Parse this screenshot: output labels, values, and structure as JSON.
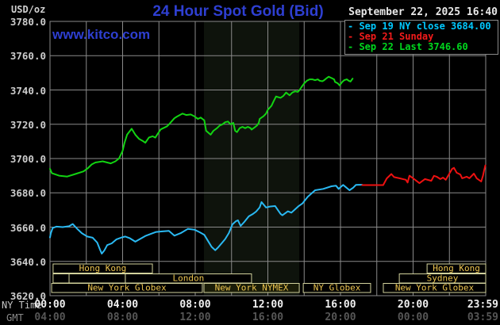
{
  "header": {
    "unit_label": "USD/oz",
    "title": "24 Hour Spot Gold (Bid)",
    "datetime": "September 22, 2025 16:40",
    "watermark": "www.kitco.com"
  },
  "legend": {
    "items": [
      {
        "label": "- Sep 19 NY close 3684.00",
        "color": "#00c8ff"
      },
      {
        "label": "- Sep 21 Sunday",
        "color": "#f21b1b"
      },
      {
        "label": "- Sep 22 Last 3746.60",
        "color": "#00d81e"
      }
    ]
  },
  "axes": {
    "ny_time_label": "NY Time",
    "gmt_label": "GMT",
    "y_ticks": [
      {
        "price": 3780,
        "label": "3780.0"
      },
      {
        "price": 3760,
        "label": "3760.0"
      },
      {
        "price": 3740,
        "label": "3740.0"
      },
      {
        "price": 3720,
        "label": "3720.0"
      },
      {
        "price": 3700,
        "label": "3700.0"
      },
      {
        "price": 3680,
        "label": "3680.0"
      },
      {
        "price": 3660,
        "label": "3660.0"
      },
      {
        "price": 3640,
        "label": "3640.0"
      },
      {
        "price": 3620,
        "label": "3620.0"
      }
    ],
    "x_ticks": [
      {
        "t": 0,
        "ny": "00:00",
        "gmt": "04:00"
      },
      {
        "t": 4,
        "ny": "04:00",
        "gmt": "08:00"
      },
      {
        "t": 8,
        "ny": "08:00",
        "gmt": "12:00"
      },
      {
        "t": 12,
        "ny": "12:00",
        "gmt": "16:00"
      },
      {
        "t": 16,
        "ny": "16:00",
        "gmt": "20:00"
      },
      {
        "t": 20,
        "ny": "20:00",
        "gmt": "00:00"
      },
      {
        "t": 23.98,
        "ny": "23:59",
        "gmt": "03:59"
      }
    ],
    "grid_color": "#8a8a8a",
    "session_border_color": "#d2d29c",
    "session_text_color": "#ecc44f"
  },
  "sessions": [
    {
      "row": 0,
      "t0": 0.17,
      "t1": 5.64,
      "label": "Hong Kong"
    },
    {
      "row": 0,
      "t0": 20.77,
      "t1": 24,
      "label": "Hong Kong"
    },
    {
      "row": 1,
      "t0": 0.17,
      "t1": 1.05,
      "label": ""
    },
    {
      "row": 1,
      "t0": 1.05,
      "t1": 4.15,
      "label": ""
    },
    {
      "row": 1,
      "t0": 4.15,
      "t1": 11.1,
      "label": "London"
    },
    {
      "row": 1,
      "t0": 19.24,
      "t1": 24,
      "label": "Sydney"
    },
    {
      "row": 2,
      "t0": 0.09,
      "t1": 8.39,
      "label": "New York Globex"
    },
    {
      "row": 2,
      "t0": 8.48,
      "t1": 13.73,
      "label": "New York NYMEX",
      "highlight": true
    },
    {
      "row": 2,
      "t0": 13.95,
      "t1": 17.66,
      "label": "NY Globex"
    },
    {
      "row": 2,
      "t0": 18.36,
      "t1": 24,
      "label": "New York Globex"
    }
  ],
  "chart_data": {
    "type": "line",
    "title": "24 Hour Spot Gold (Bid)",
    "xlabel": "NY Time (hours 00:00-23:59)",
    "ylabel": "USD/oz",
    "ylim": [
      3620,
      3780
    ],
    "xlim_hours": [
      0,
      24
    ],
    "grid": true,
    "highlight_band": {
      "t0": 8.48,
      "t1": 13.73,
      "color": "#0e130c"
    },
    "series": [
      {
        "name": "Sep 19 NY close 3684.00",
        "color": "#2ab9f2",
        "points": [
          [
            0,
            3654
          ],
          [
            0.05,
            3656.5
          ],
          [
            0.15,
            3659.5
          ],
          [
            0.35,
            3660.3
          ],
          [
            0.7,
            3660
          ],
          [
            1.05,
            3660.5
          ],
          [
            1.25,
            3661.8
          ],
          [
            1.5,
            3659
          ],
          [
            1.75,
            3656.5
          ],
          [
            2.05,
            3654.5
          ],
          [
            2.35,
            3653.8
          ],
          [
            2.6,
            3651
          ],
          [
            2.75,
            3647
          ],
          [
            2.85,
            3644.5
          ],
          [
            3,
            3646.5
          ],
          [
            3.15,
            3649.5
          ],
          [
            3.4,
            3650.5
          ],
          [
            3.65,
            3652.8
          ],
          [
            3.95,
            3654
          ],
          [
            4.15,
            3654.5
          ],
          [
            4.4,
            3653.5
          ],
          [
            4.7,
            3651.5
          ],
          [
            4.95,
            3653
          ],
          [
            5.25,
            3654.8
          ],
          [
            5.55,
            3656
          ],
          [
            5.85,
            3657.2
          ],
          [
            6.2,
            3657.5
          ],
          [
            6.55,
            3657.8
          ],
          [
            6.85,
            3655
          ],
          [
            7.2,
            3656.5
          ],
          [
            7.6,
            3659
          ],
          [
            7.95,
            3658.5
          ],
          [
            8.25,
            3657
          ],
          [
            8.5,
            3655.5
          ],
          [
            8.7,
            3652
          ],
          [
            8.9,
            3648.5
          ],
          [
            9.1,
            3646.5
          ],
          [
            9.25,
            3648
          ],
          [
            9.45,
            3650.5
          ],
          [
            9.65,
            3653
          ],
          [
            9.85,
            3656.5
          ],
          [
            10.05,
            3661.6
          ],
          [
            10.25,
            3663.5
          ],
          [
            10.35,
            3664
          ],
          [
            10.5,
            3660.7
          ],
          [
            10.7,
            3663
          ],
          [
            10.95,
            3666.3
          ],
          [
            11.15,
            3667.5
          ],
          [
            11.35,
            3669
          ],
          [
            11.55,
            3671.5
          ],
          [
            11.65,
            3674.6
          ],
          [
            11.9,
            3671.4
          ],
          [
            12.1,
            3672
          ],
          [
            12.4,
            3672.3
          ],
          [
            12.55,
            3670
          ],
          [
            12.7,
            3667.7
          ],
          [
            12.8,
            3666.9
          ],
          [
            13.1,
            3669.2
          ],
          [
            13.3,
            3668.4
          ],
          [
            13.7,
            3672.3
          ],
          [
            13.9,
            3673.8
          ],
          [
            14.2,
            3677.7
          ],
          [
            14.6,
            3681.5
          ],
          [
            15.05,
            3682.3
          ],
          [
            15.5,
            3683.8
          ],
          [
            15.75,
            3684.2
          ],
          [
            15.9,
            3682.3
          ],
          [
            16.15,
            3684.6
          ],
          [
            16.5,
            3681.5
          ],
          [
            16.7,
            3683
          ],
          [
            16.85,
            3684.6
          ],
          [
            17,
            3684.7
          ],
          [
            17.2,
            3684.7
          ]
        ]
      },
      {
        "name": "Sep 21 Sunday",
        "color": "#ee1111",
        "points": [
          [
            17.2,
            3684.5
          ],
          [
            18.35,
            3684.5
          ],
          [
            18.55,
            3688.4
          ],
          [
            18.65,
            3689.4
          ],
          [
            18.8,
            3691
          ],
          [
            18.95,
            3689.2
          ],
          [
            19.25,
            3688.5
          ],
          [
            19.6,
            3687.6
          ],
          [
            19.7,
            3686
          ],
          [
            19.8,
            3690
          ],
          [
            20,
            3688.5
          ],
          [
            20.35,
            3685.6
          ],
          [
            20.65,
            3688
          ],
          [
            21,
            3687
          ],
          [
            21.15,
            3689.9
          ],
          [
            21.3,
            3689.4
          ],
          [
            21.5,
            3688
          ],
          [
            21.65,
            3688.9
          ],
          [
            21.8,
            3687.6
          ],
          [
            22.15,
            3694
          ],
          [
            22.25,
            3694.6
          ],
          [
            22.4,
            3691.7
          ],
          [
            22.6,
            3690.7
          ],
          [
            22.7,
            3688.5
          ],
          [
            22.95,
            3689.4
          ],
          [
            23.1,
            3688.5
          ],
          [
            23.35,
            3691.2
          ],
          [
            23.5,
            3688.5
          ],
          [
            23.75,
            3686.6
          ],
          [
            23.85,
            3690
          ],
          [
            23.9,
            3692.5
          ],
          [
            23.98,
            3696
          ]
        ]
      },
      {
        "name": "Sep 22 Last 3746.60",
        "color": "#12d412",
        "points": [
          [
            0,
            3694
          ],
          [
            0.1,
            3691.5
          ],
          [
            0.5,
            3690
          ],
          [
            0.95,
            3689.5
          ],
          [
            1.4,
            3691
          ],
          [
            1.85,
            3692.5
          ],
          [
            2.1,
            3694.5
          ],
          [
            2.3,
            3696.6
          ],
          [
            2.5,
            3697.7
          ],
          [
            2.9,
            3698.4
          ],
          [
            3.15,
            3697.7
          ],
          [
            3.35,
            3697.2
          ],
          [
            3.6,
            3698.4
          ],
          [
            3.8,
            3700
          ],
          [
            4,
            3704.5
          ],
          [
            4.1,
            3709
          ],
          [
            4.25,
            3714
          ],
          [
            4.5,
            3717.4
          ],
          [
            4.7,
            3713.9
          ],
          [
            4.9,
            3711.5
          ],
          [
            5.1,
            3710.3
          ],
          [
            5.25,
            3709.2
          ],
          [
            5.45,
            3712.3
          ],
          [
            5.65,
            3713
          ],
          [
            5.8,
            3712.2
          ],
          [
            5.9,
            3713.9
          ],
          [
            6.1,
            3717
          ],
          [
            6.45,
            3718.8
          ],
          [
            6.6,
            3720.5
          ],
          [
            6.85,
            3723.5
          ],
          [
            7,
            3724.5
          ],
          [
            7.3,
            3726.2
          ],
          [
            7.5,
            3725.4
          ],
          [
            7.75,
            3725.7
          ],
          [
            7.95,
            3724.6
          ],
          [
            8.15,
            3723.1
          ],
          [
            8.3,
            3723.9
          ],
          [
            8.5,
            3722.3
          ],
          [
            8.6,
            3716.2
          ],
          [
            8.85,
            3713.9
          ],
          [
            9,
            3716.2
          ],
          [
            9.2,
            3717.7
          ],
          [
            9.35,
            3719.3
          ],
          [
            9.5,
            3720
          ],
          [
            9.65,
            3721.2
          ],
          [
            9.8,
            3721.6
          ],
          [
            9.95,
            3720
          ],
          [
            10.1,
            3720.8
          ],
          [
            10.2,
            3716.2
          ],
          [
            10.3,
            3715.4
          ],
          [
            10.45,
            3717.7
          ],
          [
            10.6,
            3718.5
          ],
          [
            10.75,
            3717.7
          ],
          [
            10.9,
            3718.5
          ],
          [
            11.05,
            3717.7
          ],
          [
            11.1,
            3716.9
          ],
          [
            11.25,
            3718
          ],
          [
            11.4,
            3719.3
          ],
          [
            11.5,
            3720.8
          ],
          [
            11.55,
            3723.1
          ],
          [
            11.65,
            3723.9
          ],
          [
            11.75,
            3724.6
          ],
          [
            11.9,
            3726.2
          ],
          [
            12,
            3728.5
          ],
          [
            12.2,
            3730.8
          ],
          [
            12.3,
            3733.1
          ],
          [
            12.45,
            3736.2
          ],
          [
            12.55,
            3735.9
          ],
          [
            12.7,
            3735.4
          ],
          [
            12.85,
            3736.5
          ],
          [
            13,
            3738.5
          ],
          [
            13.1,
            3737.7
          ],
          [
            13.2,
            3736.9
          ],
          [
            13.35,
            3738.5
          ],
          [
            13.5,
            3739.2
          ],
          [
            13.65,
            3738.9
          ],
          [
            13.75,
            3740
          ],
          [
            13.85,
            3741.6
          ],
          [
            14,
            3743.9
          ],
          [
            14.15,
            3745.4
          ],
          [
            14.3,
            3746.2
          ],
          [
            14.45,
            3746.2
          ],
          [
            14.6,
            3745.7
          ],
          [
            14.75,
            3746.2
          ],
          [
            14.85,
            3745.4
          ],
          [
            15,
            3745.1
          ],
          [
            15.1,
            3745.7
          ],
          [
            15.25,
            3747
          ],
          [
            15.35,
            3747.7
          ],
          [
            15.5,
            3747
          ],
          [
            15.65,
            3746.2
          ],
          [
            15.7,
            3744.7
          ],
          [
            15.85,
            3743.9
          ],
          [
            15.95,
            3742.7
          ],
          [
            16.1,
            3744.7
          ],
          [
            16.2,
            3745.7
          ],
          [
            16.35,
            3746.2
          ],
          [
            16.45,
            3745.4
          ],
          [
            16.55,
            3744.9
          ],
          [
            16.67,
            3746.6
          ]
        ]
      }
    ]
  }
}
